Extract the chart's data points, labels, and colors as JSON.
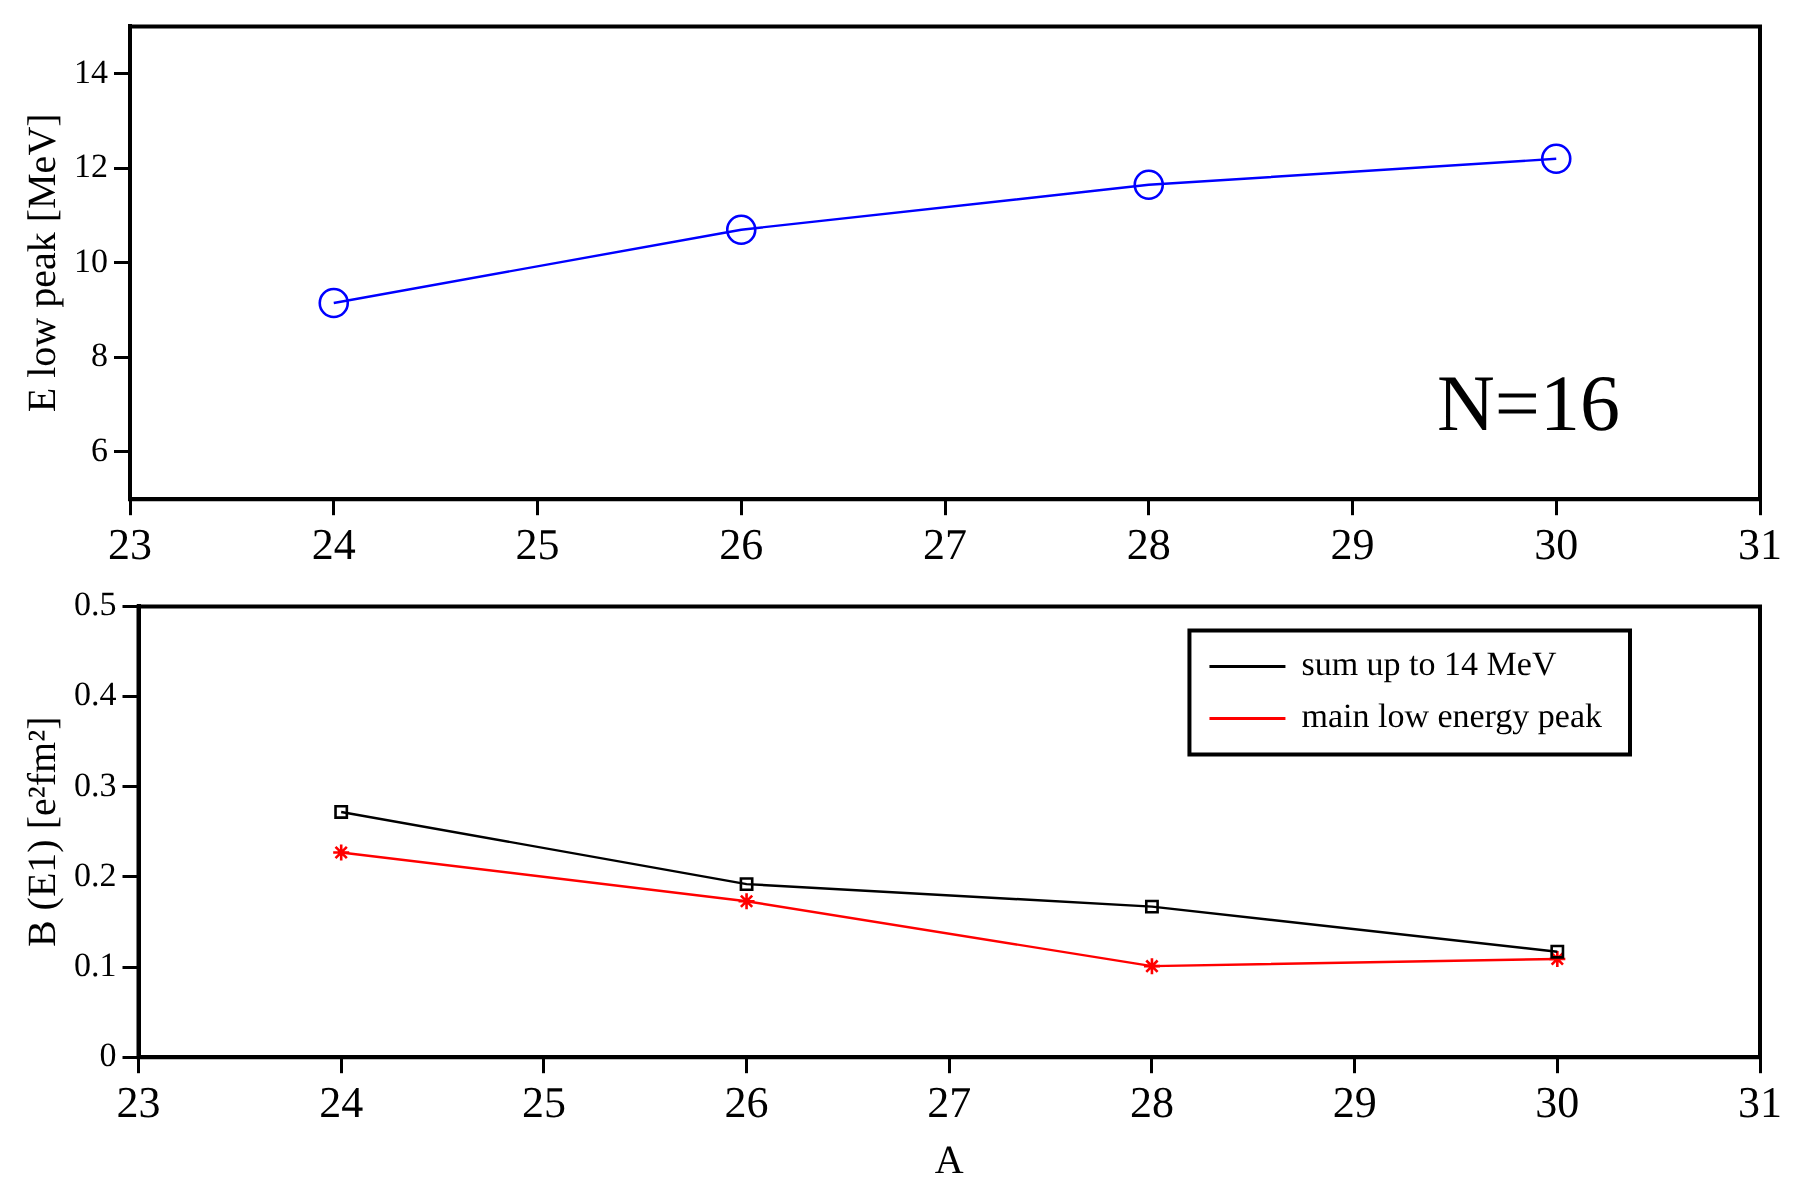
{
  "chart_data": [
    {
      "type": "line",
      "ylabel": "E low peak [MeV]",
      "x": [
        24,
        26,
        28,
        30
      ],
      "series": [
        {
          "color": "#0000ff",
          "values": [
            9.15,
            10.7,
            11.65,
            12.2
          ],
          "marker": "circle"
        }
      ],
      "xlim": [
        23,
        31
      ],
      "xticks": [
        23,
        24,
        25,
        26,
        27,
        28,
        29,
        30,
        31
      ],
      "ylim": [
        5,
        15
      ],
      "yticks": [
        6,
        8,
        10,
        12,
        14
      ],
      "annotations": [
        "N=16"
      ],
      "grid": false,
      "legend": false
    },
    {
      "type": "line",
      "xlabel": "A",
      "ylabel": "B (E1) [e²fm²]",
      "x": [
        24,
        26,
        28,
        30
      ],
      "series": [
        {
          "name": "sum up to 14 MeV",
          "color": "#000000",
          "values": [
            0.272,
            0.192,
            0.167,
            0.117
          ],
          "marker": "square"
        },
        {
          "name": "main low energy peak",
          "color": "#ff0000",
          "values": [
            0.227,
            0.173,
            0.101,
            0.109
          ],
          "marker": "cross"
        }
      ],
      "xlim": [
        23,
        31
      ],
      "xticks": [
        23,
        24,
        25,
        26,
        27,
        28,
        29,
        30,
        31
      ],
      "ylim": [
        0,
        0.5
      ],
      "yticks": [
        0,
        0.1,
        0.2,
        0.3,
        0.4,
        0.5
      ],
      "grid": false,
      "legend": "top right"
    }
  ]
}
